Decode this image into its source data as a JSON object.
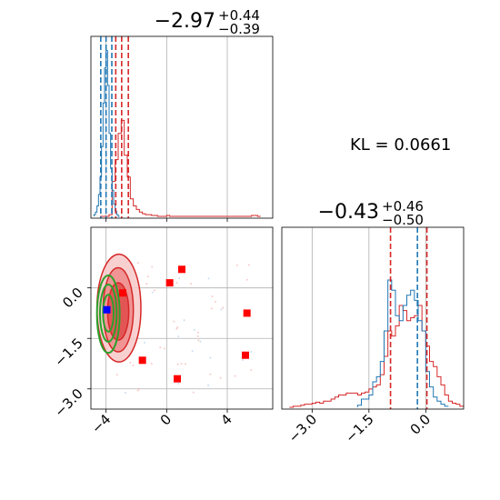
{
  "chart_data": {
    "type": "corner",
    "kl_label": "KL = 0.0661",
    "colors": {
      "red": "#d62728",
      "blue": "#1f77b4",
      "green": "#2ca02c",
      "grid": "#b0b0b0"
    },
    "panels": {
      "top_hist": {
        "title": {
          "value": "−2.97",
          "plus": "+0.44",
          "minus": "−0.39"
        },
        "xlim": [
          -5,
          7
        ],
        "grid_x": [
          -4,
          0,
          4
        ],
        "red_quantiles": [
          -3.36,
          -2.97,
          -2.53
        ],
        "blue_quantiles": [
          -4.35,
          -4.0,
          -3.62
        ],
        "red_hist": {
          "x": [
            -4.4,
            -4.2,
            -4.0,
            -3.8,
            -3.6,
            -3.4,
            -3.2,
            -3.0,
            -2.8,
            -2.6,
            -2.4,
            -2.2,
            -2.0,
            -1.8,
            -1.6,
            -1.4,
            -1.2,
            -1.0,
            -0.8,
            -0.6,
            -0.4,
            -0.2,
            0.0,
            0.2,
            0.4,
            0.6,
            0.8,
            1.0,
            1.2,
            1.4,
            1.6,
            1.8,
            2.0,
            2.2,
            2.4,
            2.6,
            2.8,
            3.0,
            3.2,
            3.4,
            3.6,
            3.8,
            4.0,
            4.2,
            4.4,
            4.6,
            4.8,
            5.0,
            5.2,
            5.4,
            5.6,
            5.8,
            6.0
          ],
          "y": [
            0,
            0,
            0,
            2,
            40,
            65,
            95,
            110,
            70,
            45,
            20,
            12,
            8,
            5,
            3,
            2,
            2,
            1,
            1,
            0,
            0,
            0,
            1,
            0,
            0,
            0,
            0,
            0,
            0,
            0,
            0,
            0,
            0,
            0,
            0,
            0,
            0,
            0,
            0,
            0,
            0,
            0,
            0,
            0,
            0,
            0,
            0,
            0,
            0,
            0,
            1,
            1,
            0
          ]
        },
        "blue_hist": {
          "x": [
            -4.8,
            -4.7,
            -4.6,
            -4.5,
            -4.4,
            -4.3,
            -4.2,
            -4.1,
            -4.0,
            -3.9,
            -3.8,
            -3.7,
            -3.6,
            -3.5,
            -3.4,
            -3.3,
            -3.2
          ],
          "y": [
            2,
            5,
            12,
            25,
            45,
            80,
            130,
            170,
            190,
            150,
            95,
            55,
            30,
            14,
            6,
            2,
            0
          ]
        }
      },
      "corner_2d": {
        "xlim": [
          -5,
          7
        ],
        "ylim": [
          -3.6,
          1.8
        ],
        "x_ticks": [
          -4,
          0,
          4
        ],
        "x_tick_labels": [
          "−4",
          "0",
          "4"
        ],
        "y_ticks": [
          0,
          -1.5,
          -3
        ],
        "y_tick_labels": [
          "0.0",
          "−1.5",
          "−3.0"
        ],
        "red_markers": [
          [
            1.0,
            0.55
          ],
          [
            0.2,
            0.15
          ],
          [
            5.3,
            -0.75
          ],
          [
            5.2,
            -2.0
          ],
          [
            -1.6,
            -2.15
          ],
          [
            0.7,
            -2.7
          ],
          [
            -2.9,
            -0.15
          ]
        ],
        "blue_marker": [
          -3.95,
          -0.65
        ],
        "red_contours": [
          {
            "cx": -3.2,
            "cy": -0.7,
            "rx": 0.7,
            "ry": 0.85
          },
          {
            "cx": -3.2,
            "cy": -0.65,
            "rx": 1.0,
            "ry": 1.25
          },
          {
            "cx": -3.15,
            "cy": -0.6,
            "rx": 1.45,
            "ry": 1.6
          }
        ],
        "green_contours": [
          {
            "cx": -3.85,
            "cy": -0.75,
            "rx": 0.35,
            "ry": 0.55
          },
          {
            "cx": -3.85,
            "cy": -0.75,
            "rx": 0.55,
            "ry": 0.85
          },
          {
            "cx": -3.85,
            "cy": -0.78,
            "rx": 0.75,
            "ry": 1.15
          }
        ]
      },
      "right_hist": {
        "title": {
          "value": "−0.43",
          "plus": "+0.46",
          "minus": "−0.50"
        },
        "xlim": [
          -3.8,
          1.0
        ],
        "x_ticks": [
          -3,
          -1.5,
          0
        ],
        "x_tick_labels": [
          "−3.0",
          "−1.5",
          "0.0"
        ],
        "grid_x": [
          -3,
          -1.5,
          0
        ],
        "red_quantiles": [
          -0.93,
          -0.43,
          0.03
        ],
        "blue_quantiles": [
          -0.22
        ],
        "red_hist": {
          "x": [
            -3.6,
            -3.5,
            -3.4,
            -3.3,
            -3.2,
            -3.1,
            -3.0,
            -2.9,
            -2.8,
            -2.7,
            -2.6,
            -2.5,
            -2.4,
            -2.3,
            -2.2,
            -2.1,
            -2.0,
            -1.9,
            -1.8,
            -1.7,
            -1.6,
            -1.5,
            -1.4,
            -1.3,
            -1.2,
            -1.1,
            -1.0,
            -0.9,
            -0.8,
            -0.7,
            -0.6,
            -0.5,
            -0.4,
            -0.3,
            -0.2,
            -0.1,
            0.0,
            0.1,
            0.2,
            0.3,
            0.4,
            0.5,
            0.6,
            0.7,
            0.8,
            0.9
          ],
          "y": [
            0,
            1,
            1,
            2,
            3,
            3,
            4,
            5,
            4,
            6,
            6,
            8,
            10,
            12,
            12,
            14,
            14,
            14,
            12,
            14,
            15,
            18,
            20,
            22,
            32,
            50,
            75,
            70,
            80,
            100,
            95,
            85,
            88,
            90,
            100,
            75,
            60,
            45,
            40,
            30,
            22,
            12,
            6,
            4,
            3,
            1
          ]
        },
        "blue_hist": {
          "x": [
            -1.8,
            -1.7,
            -1.6,
            -1.5,
            -1.4,
            -1.3,
            -1.2,
            -1.1,
            -1.0,
            -0.9,
            -0.8,
            -0.7,
            -0.6,
            -0.5,
            -0.4,
            -0.3,
            -0.2,
            -0.1,
            0.0,
            0.1,
            0.2,
            0.3,
            0.4,
            0.5
          ],
          "y": [
            2,
            8,
            8,
            12,
            25,
            30,
            45,
            75,
            125,
            115,
            90,
            85,
            100,
            110,
            115,
            105,
            85,
            75,
            35,
            20,
            10,
            6,
            3,
            1
          ]
        }
      }
    }
  }
}
